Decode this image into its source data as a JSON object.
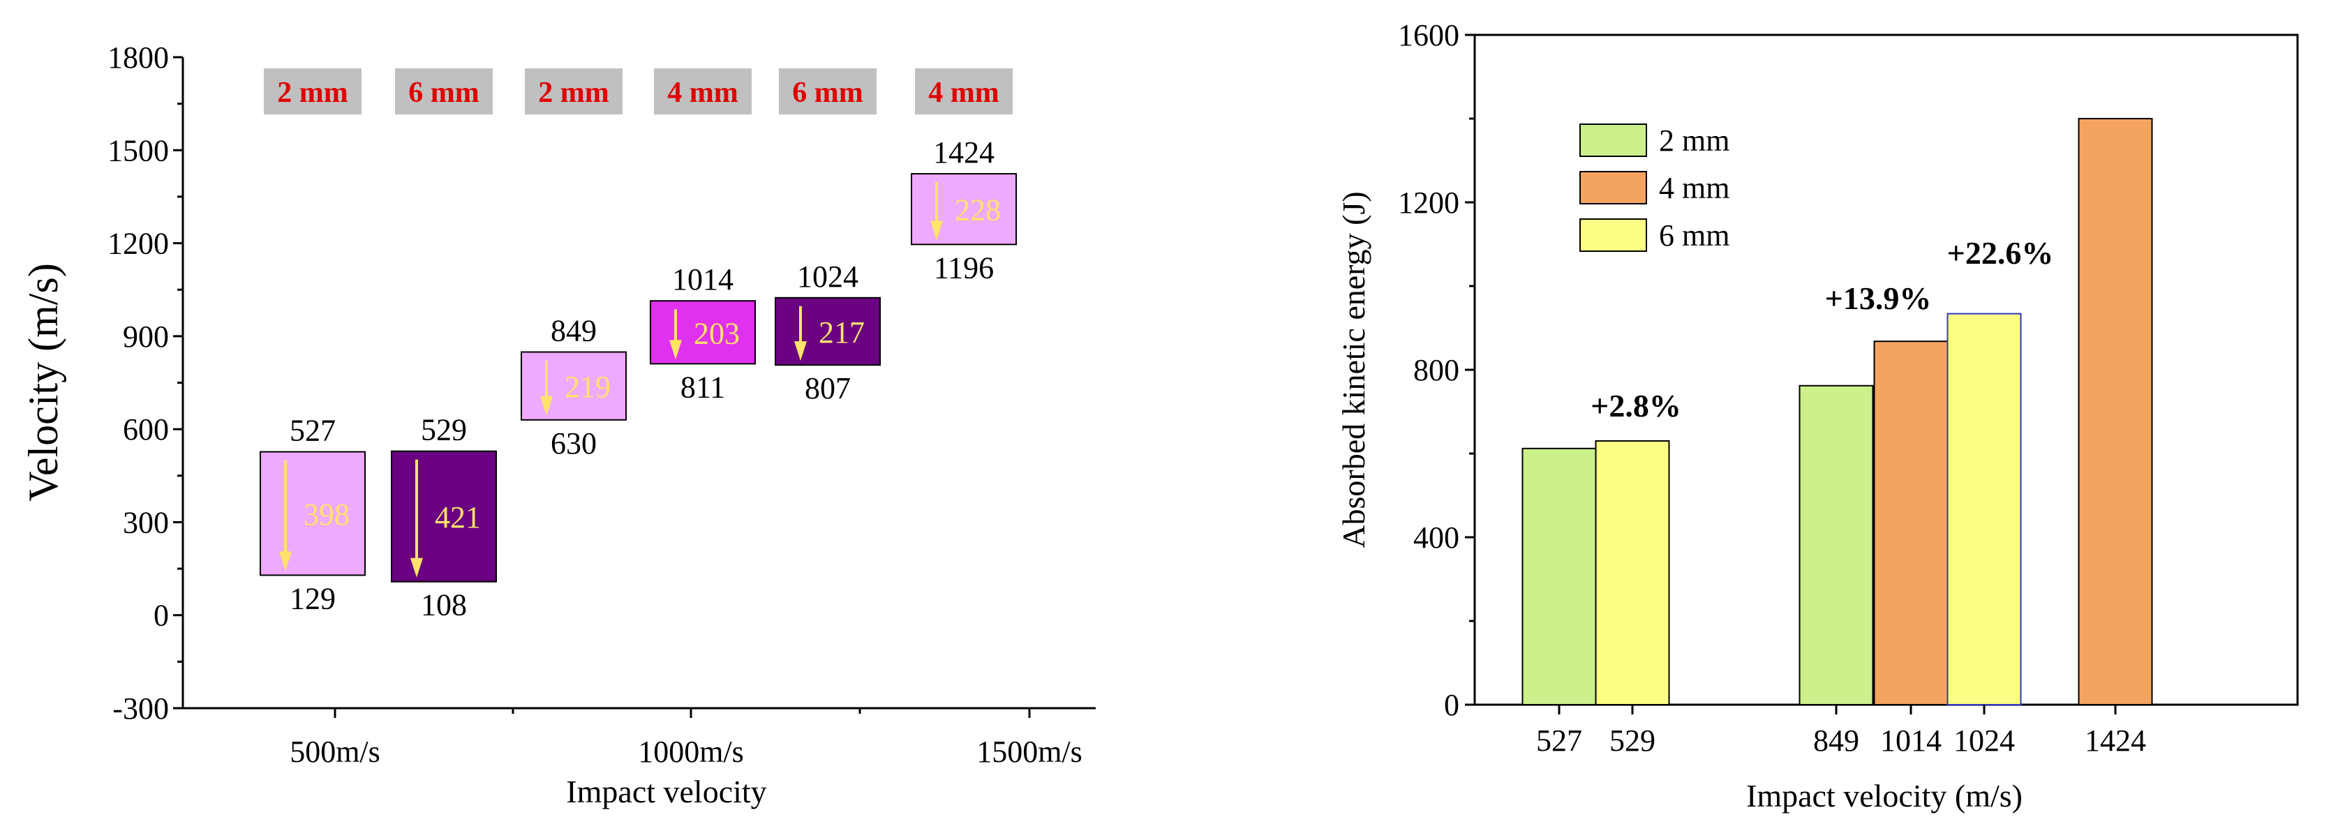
{
  "chart_data": [
    {
      "type": "floating-bar",
      "xlabel": "Impact velocity",
      "ylabel": "Velocity (m/s)",
      "ylim": [
        -300,
        1800
      ],
      "yticks": [
        -300,
        0,
        300,
        600,
        900,
        1200,
        1500,
        1800
      ],
      "xtick_labels": [
        "500m/s",
        "1000m/s",
        "1500m/s"
      ],
      "grid": false,
      "bars": [
        {
          "thickness": "2 mm",
          "initial": 527,
          "residual": 129,
          "drop": 398,
          "fill": "#eeaaff"
        },
        {
          "thickness": "6 mm",
          "initial": 529,
          "residual": 108,
          "drop": 421,
          "fill": "#6a0082"
        },
        {
          "thickness": "2 mm",
          "initial": 849,
          "residual": 630,
          "drop": 219,
          "fill": "#eeaaff"
        },
        {
          "thickness": "4 mm",
          "initial": 1014,
          "residual": 811,
          "drop": 203,
          "fill": "#e030f0"
        },
        {
          "thickness": "6 mm",
          "initial": 1024,
          "residual": 807,
          "drop": 217,
          "fill": "#6a0082"
        },
        {
          "thickness": "4 mm",
          "initial": 1424,
          "residual": 1196,
          "drop": 228,
          "fill": "#eeaaff"
        }
      ],
      "colors": {
        "label_box": "#c0c0c0",
        "label_text": "#e00000",
        "arrow": "#ffe36b"
      }
    },
    {
      "type": "bar",
      "xlabel": "Impact velocity (m/s)",
      "ylabel": "Absorbed kinetic energy (J)",
      "ylim": [
        0,
        1600
      ],
      "yticks": [
        0,
        400,
        800,
        1200,
        1600
      ],
      "grid": false,
      "legend_position": "top-left",
      "legend": [
        {
          "name": "2 mm",
          "color": "#ccf08c"
        },
        {
          "name": "4 mm",
          "color": "#f5a460"
        },
        {
          "name": "6 mm",
          "color": "#fdfd86"
        }
      ],
      "bars": [
        {
          "x": "527",
          "series": "2 mm",
          "value": 612
        },
        {
          "x": "529",
          "series": "6 mm",
          "value": 630
        },
        {
          "x": "849",
          "series": "2 mm",
          "value": 762
        },
        {
          "x": "1014",
          "series": "4 mm",
          "value": 868
        },
        {
          "x": "1024",
          "series": "6 mm",
          "value": 934
        },
        {
          "x": "1424",
          "series": "4 mm",
          "value": 1400
        }
      ],
      "annotations": [
        {
          "text": "+2.8%",
          "anchor_bar": 1
        },
        {
          "text": "+13.9%",
          "anchor_bar": 3
        },
        {
          "text": "+22.6%",
          "anchor_bar": 4
        }
      ]
    }
  ]
}
